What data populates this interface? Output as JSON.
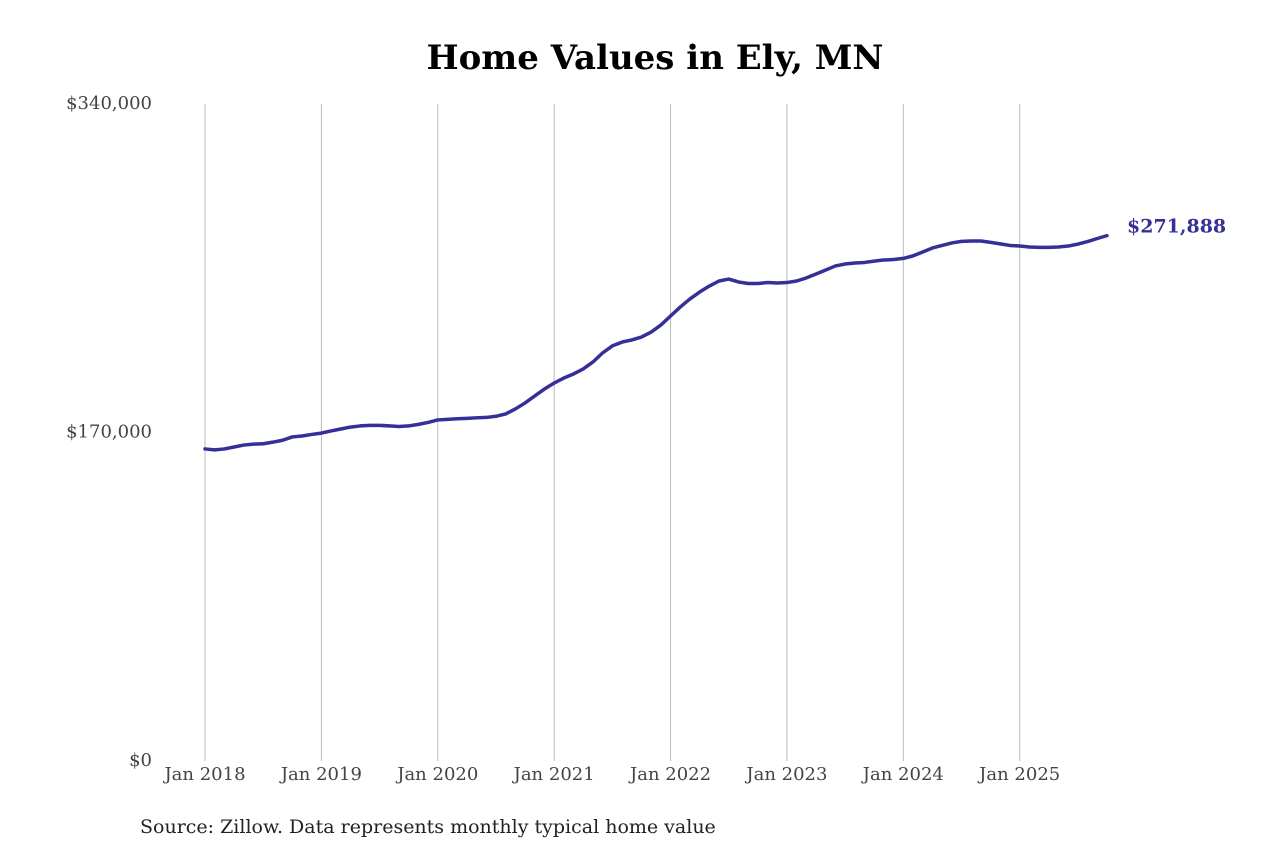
{
  "chart_data": {
    "type": "line",
    "title": "Home Values in Ely, MN",
    "source": "Source: Zillow. Data represents monthly typical home value",
    "color": "#352f97",
    "grid": "x",
    "xlim": [
      "2018-01",
      "2025-10"
    ],
    "ylim": [
      0,
      340000
    ],
    "yticks": [
      {
        "value": 0,
        "label": "$0"
      },
      {
        "value": 170000,
        "label": "$170,000"
      },
      {
        "value": 340000,
        "label": "$340,000"
      }
    ],
    "xticks": [
      {
        "value": "2018-01",
        "label": "Jan 2018"
      },
      {
        "value": "2019-01",
        "label": "Jan 2019"
      },
      {
        "value": "2020-01",
        "label": "Jan 2020"
      },
      {
        "value": "2021-01",
        "label": "Jan 2021"
      },
      {
        "value": "2022-01",
        "label": "Jan 2022"
      },
      {
        "value": "2023-01",
        "label": "Jan 2023"
      },
      {
        "value": "2024-01",
        "label": "Jan 2024"
      },
      {
        "value": "2025-01",
        "label": "Jan 2025"
      }
    ],
    "x": [
      "2018-01",
      "2018-02",
      "2018-03",
      "2018-04",
      "2018-05",
      "2018-06",
      "2018-07",
      "2018-08",
      "2018-09",
      "2018-10",
      "2018-11",
      "2018-12",
      "2019-01",
      "2019-02",
      "2019-03",
      "2019-04",
      "2019-05",
      "2019-06",
      "2019-07",
      "2019-08",
      "2019-09",
      "2019-10",
      "2019-11",
      "2019-12",
      "2020-01",
      "2020-02",
      "2020-03",
      "2020-04",
      "2020-05",
      "2020-06",
      "2020-07",
      "2020-08",
      "2020-09",
      "2020-10",
      "2020-11",
      "2020-12",
      "2021-01",
      "2021-02",
      "2021-03",
      "2021-04",
      "2021-05",
      "2021-06",
      "2021-07",
      "2021-08",
      "2021-09",
      "2021-10",
      "2021-11",
      "2021-12",
      "2022-01",
      "2022-02",
      "2022-03",
      "2022-04",
      "2022-05",
      "2022-06",
      "2022-07",
      "2022-08",
      "2022-09",
      "2022-10",
      "2022-11",
      "2022-12",
      "2023-01",
      "2023-02",
      "2023-03",
      "2023-04",
      "2023-05",
      "2023-06",
      "2023-07",
      "2023-08",
      "2023-09",
      "2023-10",
      "2023-11",
      "2023-12",
      "2024-01",
      "2024-02",
      "2024-03",
      "2024-04",
      "2024-05",
      "2024-06",
      "2024-07",
      "2024-08",
      "2024-09",
      "2024-10",
      "2024-11",
      "2024-12",
      "2025-01",
      "2025-02",
      "2025-03",
      "2025-04",
      "2025-05",
      "2025-06",
      "2025-07",
      "2025-08",
      "2025-09",
      "2025-10"
    ],
    "values": [
      161500,
      161000,
      161500,
      162500,
      163500,
      164000,
      164200,
      165000,
      166000,
      167700,
      168200,
      169000,
      169700,
      170800,
      171800,
      172800,
      173400,
      173700,
      173700,
      173400,
      173100,
      173400,
      174200,
      175200,
      176500,
      176800,
      177100,
      177300,
      177600,
      177800,
      178400,
      179600,
      182200,
      185300,
      188900,
      192500,
      195600,
      198200,
      200300,
      202900,
      206500,
      211200,
      214800,
      216800,
      217900,
      219400,
      222000,
      225600,
      230300,
      234900,
      239100,
      242700,
      245800,
      248400,
      249400,
      247900,
      247100,
      247100,
      247600,
      247400,
      247600,
      248400,
      250000,
      252000,
      254100,
      256200,
      257200,
      257700,
      258000,
      258700,
      259300,
      259500,
      260100,
      261400,
      263400,
      265500,
      266800,
      268100,
      268900,
      269100,
      269100,
      268400,
      267600,
      266800,
      266500,
      266000,
      265800,
      265800,
      266000,
      266500,
      267500,
      268800,
      270400,
      271888
    ],
    "value_labels": [
      null,
      null,
      null,
      null,
      null,
      null,
      null,
      null,
      null,
      null,
      null,
      null,
      null,
      null,
      null,
      null,
      null,
      null,
      null,
      null,
      null,
      null,
      null,
      null,
      null,
      null,
      null,
      null,
      null,
      null,
      null,
      null,
      null,
      null,
      null,
      null,
      null,
      null,
      null,
      null,
      null,
      null,
      null,
      null,
      null,
      null,
      null,
      null,
      null,
      null,
      null,
      null,
      null,
      null,
      null,
      null,
      null,
      null,
      null,
      null,
      null,
      null,
      null,
      null,
      null,
      null,
      null,
      null,
      null,
      null,
      null,
      null,
      null,
      null,
      null,
      null,
      null,
      null,
      null,
      null,
      null,
      null,
      null,
      null,
      null,
      null,
      null,
      null,
      null,
      null,
      null,
      null,
      null,
      "$271,888"
    ]
  }
}
